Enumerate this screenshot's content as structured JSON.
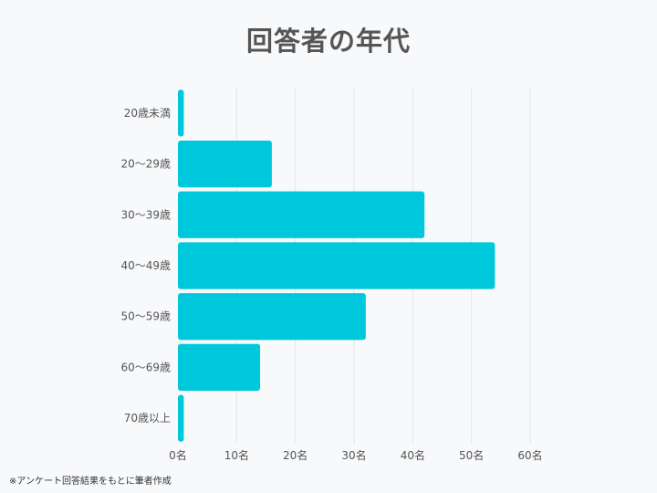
{
  "colors": {
    "bar": "#00c8dc",
    "grid": "#e3e4e8",
    "background": "#f8f9fb",
    "title": "#555555"
  },
  "chart_data": {
    "type": "bar",
    "orientation": "horizontal",
    "title": "回答者の年代",
    "categories": [
      "20歳未満",
      "20～29歳",
      "30～39歳",
      "40～49歳",
      "50～59歳",
      "60～69歳",
      "70歳以上"
    ],
    "values": [
      1,
      16,
      42,
      54,
      32,
      14,
      1
    ],
    "x_ticks": [
      "0名",
      "10名",
      "20名",
      "30名",
      "40名",
      "50名",
      "60名"
    ],
    "xlim": [
      0,
      60
    ],
    "grid": true,
    "legend": "none"
  },
  "footnote": "※アンケート回答結果をもとに筆者作成"
}
